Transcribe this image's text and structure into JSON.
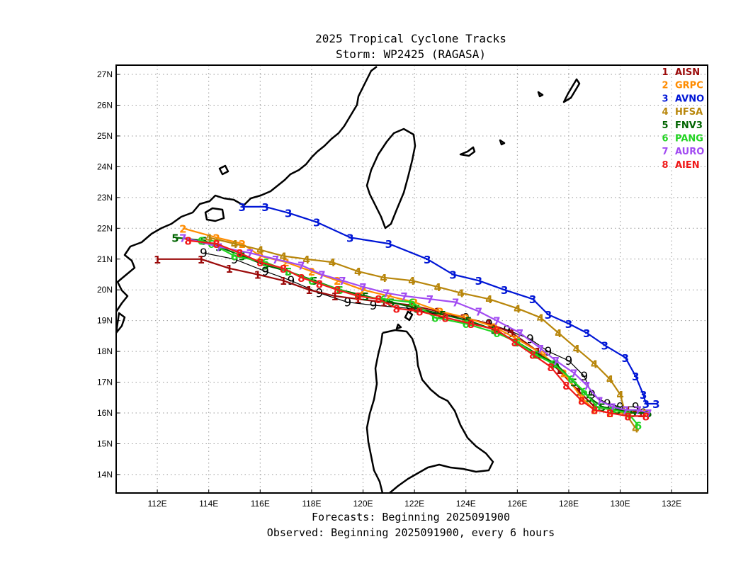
{
  "chart_data": {
    "type": "line",
    "title": "2025 Tropical Cyclone Tracks",
    "subtitle": "Storm: WP2425 (RAGASA)",
    "footer_lines": [
      "Forecasts: Beginning 2025091900",
      "Observed: Beginning 2025091900, every 6 hours"
    ],
    "xlim": [
      110.4,
      133.4
    ],
    "ylim": [
      13.4,
      27.3
    ],
    "x_ticks": [
      112,
      114,
      116,
      118,
      120,
      122,
      124,
      126,
      128,
      130,
      132
    ],
    "x_tick_labels": [
      "112E",
      "114E",
      "116E",
      "118E",
      "120E",
      "122E",
      "124E",
      "126E",
      "128E",
      "130E",
      "132E"
    ],
    "y_ticks": [
      14,
      15,
      16,
      17,
      18,
      19,
      20,
      21,
      22,
      23,
      24,
      25,
      26,
      27
    ],
    "y_tick_labels": [
      "14N",
      "15N",
      "16N",
      "17N",
      "18N",
      "19N",
      "20N",
      "21N",
      "22N",
      "23N",
      "24N",
      "25N",
      "26N",
      "27N"
    ],
    "grid": true,
    "legend_position": "top-right",
    "observed": {
      "marker": "9",
      "color": "#000000",
      "points": [
        [
          130.9,
          16.0
        ],
        [
          130.6,
          16.2
        ],
        [
          130.0,
          16.2
        ],
        [
          129.5,
          16.3
        ],
        [
          128.9,
          16.6
        ],
        [
          128.6,
          17.2
        ],
        [
          128.0,
          17.7
        ],
        [
          127.2,
          18.0
        ],
        [
          126.5,
          18.4
        ],
        [
          125.6,
          18.7
        ],
        [
          124.9,
          18.9
        ],
        [
          124.0,
          19.1
        ],
        [
          122.9,
          19.2
        ],
        [
          121.8,
          19.4
        ],
        [
          120.4,
          19.5
        ],
        [
          119.4,
          19.6
        ],
        [
          118.3,
          19.9
        ],
        [
          117.2,
          20.3
        ],
        [
          116.2,
          20.6
        ],
        [
          115.0,
          21.0
        ],
        [
          113.8,
          21.2
        ]
      ]
    },
    "series": [
      {
        "id": "1",
        "name": "AISN",
        "color": "#9b0a0a",
        "points": [
          [
            130.8,
            16.0
          ],
          [
            130.3,
            16.1
          ],
          [
            129.7,
            16.1
          ],
          [
            129.0,
            16.2
          ],
          [
            128.4,
            16.7
          ],
          [
            127.6,
            17.4
          ],
          [
            126.8,
            18.0
          ],
          [
            125.8,
            18.6
          ],
          [
            124.9,
            18.9
          ],
          [
            123.9,
            19.1
          ],
          [
            122.9,
            19.3
          ],
          [
            121.9,
            19.5
          ],
          [
            120.8,
            19.6
          ],
          [
            119.8,
            19.7
          ],
          [
            118.9,
            19.8
          ],
          [
            117.9,
            20.0
          ],
          [
            116.9,
            20.3
          ],
          [
            115.9,
            20.5
          ],
          [
            114.8,
            20.7
          ],
          [
            113.7,
            21.0
          ],
          [
            112.0,
            21.0
          ]
        ]
      },
      {
        "id": "2",
        "name": "GRPC",
        "color": "#ff8c00",
        "points": [
          [
            131.0,
            16.0
          ],
          [
            130.4,
            16.0
          ],
          [
            129.6,
            16.0
          ],
          [
            129.0,
            16.1
          ],
          [
            128.5,
            16.5
          ],
          [
            127.8,
            17.3
          ],
          [
            127.0,
            17.9
          ],
          [
            126.0,
            18.4
          ],
          [
            125.1,
            18.8
          ],
          [
            124.0,
            19.1
          ],
          [
            123.0,
            19.3
          ],
          [
            122.0,
            19.6
          ],
          [
            121.0,
            19.8
          ],
          [
            120.0,
            20.0
          ],
          [
            119.0,
            20.3
          ],
          [
            118.0,
            20.6
          ],
          [
            117.0,
            20.9
          ],
          [
            116.0,
            21.1
          ],
          [
            115.3,
            21.5
          ],
          [
            114.3,
            21.7
          ],
          [
            113.0,
            22.0
          ]
        ]
      },
      {
        "id": "3",
        "name": "AVNO",
        "color": "#0016d6",
        "points": [
          [
            131.4,
            16.3
          ],
          [
            131.0,
            16.3
          ],
          [
            130.9,
            16.6
          ],
          [
            130.6,
            17.2
          ],
          [
            130.2,
            17.8
          ],
          [
            129.4,
            18.2
          ],
          [
            128.7,
            18.6
          ],
          [
            128.0,
            18.9
          ],
          [
            127.2,
            19.2
          ],
          [
            126.6,
            19.7
          ],
          [
            125.5,
            20.0
          ],
          [
            124.5,
            20.3
          ],
          [
            123.5,
            20.5
          ],
          [
            122.5,
            21.0
          ],
          [
            121.0,
            21.5
          ],
          [
            119.5,
            21.7
          ],
          [
            118.2,
            22.2
          ],
          [
            117.1,
            22.5
          ],
          [
            116.2,
            22.7
          ],
          [
            115.3,
            22.7
          ]
        ]
      },
      {
        "id": "4",
        "name": "HFSA",
        "color": "#b8860b",
        "points": [
          [
            130.6,
            15.5
          ],
          [
            130.2,
            16.0
          ],
          [
            130.0,
            16.6
          ],
          [
            129.6,
            17.1
          ],
          [
            129.0,
            17.6
          ],
          [
            128.3,
            18.1
          ],
          [
            127.6,
            18.6
          ],
          [
            126.9,
            19.1
          ],
          [
            126.0,
            19.4
          ],
          [
            124.9,
            19.7
          ],
          [
            123.8,
            19.9
          ],
          [
            122.9,
            20.1
          ],
          [
            121.9,
            20.3
          ],
          [
            120.8,
            20.4
          ],
          [
            119.8,
            20.6
          ],
          [
            118.8,
            20.9
          ],
          [
            117.8,
            21.0
          ],
          [
            116.9,
            21.1
          ],
          [
            116.0,
            21.3
          ],
          [
            115.0,
            21.5
          ],
          [
            114.0,
            21.7
          ]
        ]
      },
      {
        "id": "5",
        "name": "FNV3",
        "color": "#006400",
        "points": [
          [
            131.1,
            16.0
          ],
          [
            130.5,
            16.0
          ],
          [
            129.9,
            16.1
          ],
          [
            129.3,
            16.2
          ],
          [
            128.8,
            16.5
          ],
          [
            128.2,
            17.0
          ],
          [
            127.5,
            17.6
          ],
          [
            126.8,
            17.9
          ],
          [
            126.0,
            18.3
          ],
          [
            125.1,
            18.7
          ],
          [
            124.1,
            19.0
          ],
          [
            123.1,
            19.2
          ],
          [
            122.1,
            19.4
          ],
          [
            121.1,
            19.6
          ],
          [
            120.1,
            19.8
          ],
          [
            119.1,
            20.0
          ],
          [
            118.1,
            20.3
          ],
          [
            117.1,
            20.6
          ],
          [
            116.2,
            20.8
          ],
          [
            115.3,
            21.1
          ],
          [
            114.4,
            21.4
          ],
          [
            113.8,
            21.6
          ],
          [
            112.7,
            21.7
          ]
        ]
      },
      {
        "id": "6",
        "name": "PANG",
        "color": "#22d422",
        "points": [
          [
            130.7,
            15.6
          ],
          [
            130.3,
            16.0
          ],
          [
            129.7,
            16.1
          ],
          [
            129.1,
            16.2
          ],
          [
            128.6,
            16.7
          ],
          [
            128.1,
            17.1
          ],
          [
            127.4,
            17.6
          ],
          [
            126.7,
            17.9
          ],
          [
            126.0,
            18.3
          ],
          [
            125.2,
            18.6
          ],
          [
            124.0,
            18.9
          ],
          [
            122.8,
            19.1
          ],
          [
            121.9,
            19.6
          ],
          [
            120.8,
            19.7
          ],
          [
            119.8,
            19.8
          ],
          [
            119.1,
            20.0
          ],
          [
            118.0,
            20.3
          ],
          [
            117.1,
            20.6
          ],
          [
            116.2,
            20.9
          ],
          [
            115.0,
            21.1
          ],
          [
            114.1,
            21.5
          ],
          [
            113.7,
            21.6
          ]
        ]
      },
      {
        "id": "7",
        "name": "AURO",
        "color": "#a24cf2",
        "points": [
          [
            131.1,
            16.0
          ],
          [
            130.7,
            16.1
          ],
          [
            130.2,
            16.1
          ],
          [
            129.7,
            16.2
          ],
          [
            129.2,
            16.4
          ],
          [
            128.7,
            16.9
          ],
          [
            128.2,
            17.3
          ],
          [
            127.5,
            17.7
          ],
          [
            126.9,
            18.1
          ],
          [
            126.1,
            18.6
          ],
          [
            125.2,
            19.0
          ],
          [
            124.5,
            19.3
          ],
          [
            123.6,
            19.6
          ],
          [
            122.6,
            19.7
          ],
          [
            121.6,
            19.8
          ],
          [
            120.9,
            19.9
          ],
          [
            120.0,
            20.1
          ],
          [
            119.2,
            20.3
          ],
          [
            118.4,
            20.5
          ],
          [
            117.6,
            20.8
          ],
          [
            116.6,
            21.0
          ],
          [
            115.6,
            21.2
          ],
          [
            114.4,
            21.4
          ],
          [
            113.0,
            21.7
          ]
        ]
      },
      {
        "id": "8",
        "name": "AIEN",
        "color": "#f01818",
        "points": [
          [
            131.0,
            15.9
          ],
          [
            130.3,
            15.9
          ],
          [
            129.6,
            16.0
          ],
          [
            129.0,
            16.1
          ],
          [
            128.5,
            16.4
          ],
          [
            127.9,
            16.9
          ],
          [
            127.3,
            17.5
          ],
          [
            126.6,
            17.9
          ],
          [
            125.9,
            18.3
          ],
          [
            125.2,
            18.7
          ],
          [
            124.2,
            18.9
          ],
          [
            123.2,
            19.1
          ],
          [
            122.2,
            19.3
          ],
          [
            121.3,
            19.4
          ],
          [
            120.6,
            19.7
          ],
          [
            119.8,
            19.8
          ],
          [
            119.0,
            20.0
          ],
          [
            118.3,
            20.2
          ],
          [
            117.6,
            20.4
          ],
          [
            116.9,
            20.7
          ],
          [
            116.0,
            20.9
          ],
          [
            115.2,
            21.2
          ],
          [
            114.3,
            21.5
          ],
          [
            113.2,
            21.6
          ]
        ]
      }
    ]
  }
}
